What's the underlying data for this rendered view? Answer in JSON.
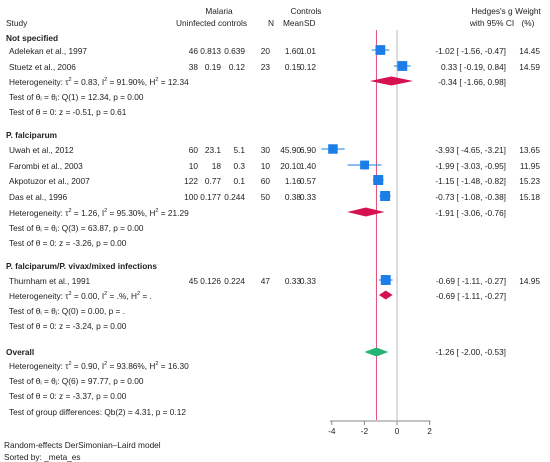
{
  "header": {
    "study": "Study",
    "group_malaria": "Malaria",
    "group_controls": "Controls",
    "uninfected_controls": "Uninfected controls",
    "n": "N",
    "mean": "Mean",
    "sd": "SD",
    "effect_line1": "Hedges's g",
    "effect_line2": "with 95% CI",
    "weight_line1": "Weight",
    "weight_line2": "(%)"
  },
  "groups": [
    {
      "title": "Not specified",
      "studies": [
        {
          "name": "Adelekan et al., 1997",
          "malaria_n": "46",
          "malaria_mean": "0.813",
          "malaria_sd": "0.639",
          "control_n": "20",
          "control_mean": "1.60",
          "control_sd": "1.01",
          "ci_text": "-1.02 [ -1.56, -0.47]",
          "weight": "14.45"
        },
        {
          "name": "Stuetz et al., 2006",
          "malaria_n": "38",
          "malaria_mean": "0.19",
          "malaria_sd": "0.12",
          "control_n": "23",
          "control_mean": "0.15",
          "control_sd": "0.12",
          "ci_text": "0.33 [ -0.19, 0.84]",
          "weight": "14.59"
        }
      ],
      "heterogeneity_prefix": "Heterogeneity: τ",
      "heterogeneity_sup1": "2",
      "heterogeneity_mid1": " = 0.83, I",
      "heterogeneity_sup2": "2",
      "heterogeneity_mid2": " = 91.90%, H",
      "heterogeneity_sup3": "2",
      "heterogeneity_end": " = 12.34",
      "pooled_ci_text": "-0.34 [ -1.66, 0.98]",
      "test_theta_i": "Test of θᵢ = θⱼ: Q(1) = 12.34, p = 0.00",
      "test_theta_zero": "Test of θ = 0: z = -0.51, p = 0.61"
    },
    {
      "title": "P. falciparum",
      "studies": [
        {
          "name": "Uwah et al., 2012",
          "malaria_n": "60",
          "malaria_mean": "23.1",
          "malaria_sd": "5.1",
          "control_n": "30",
          "control_mean": "45.90",
          "control_sd": "6.90",
          "ci_text": "-3.93 [ -4.65, -3.21]",
          "weight": "13.65"
        },
        {
          "name": "Farombi et al., 2003",
          "malaria_n": "10",
          "malaria_mean": "18",
          "malaria_sd": "0.3",
          "control_n": "10",
          "control_mean": "20.10",
          "control_sd": "1.40",
          "ci_text": "-1.99 [ -3.03, -0.95]",
          "weight": "11.95"
        },
        {
          "name": "Akpotuzor et al., 2007",
          "malaria_n": "122",
          "malaria_mean": "0.77",
          "malaria_sd": "0.1",
          "control_n": "60",
          "control_mean": "1.16",
          "control_sd": "0.57",
          "ci_text": "-1.15 [ -1.48, -0.82]",
          "weight": "15.23"
        },
        {
          "name": "Das et al., 1996",
          "malaria_n": "100",
          "malaria_mean": "0.177",
          "malaria_sd": "0.244",
          "control_n": "50",
          "control_mean": "0.38",
          "control_sd": "0.33",
          "ci_text": "-0.73 [ -1.08, -0.38]",
          "weight": "15.18"
        }
      ],
      "heterogeneity_prefix": "Heterogeneity: τ",
      "heterogeneity_sup1": "2",
      "heterogeneity_mid1": " = 1.26, I",
      "heterogeneity_sup2": "2",
      "heterogeneity_mid2": " = 95.30%, H",
      "heterogeneity_sup3": "2",
      "heterogeneity_end": " = 21.29",
      "pooled_ci_text": "-1.91 [ -3.06, -0.76]",
      "test_theta_i": "Test of θᵢ = θⱼ: Q(3) = 63.87, p = 0.00",
      "test_theta_zero": "Test of θ = 0: z = -3.26, p = 0.00"
    },
    {
      "title": "P. falciparum/P. vivax/mixed infections",
      "studies": [
        {
          "name": "Thurnham et al., 1991",
          "malaria_n": "45",
          "malaria_mean": "0.126",
          "malaria_sd": "0.224",
          "control_n": "47",
          "control_mean": "0.33",
          "control_sd": "0.33",
          "ci_text": "-0.69 [ -1.11, -0.27]",
          "weight": "14.95"
        }
      ],
      "heterogeneity_prefix": "Heterogeneity: τ",
      "heterogeneity_sup1": "2",
      "heterogeneity_mid1": " = 0.00, I",
      "heterogeneity_sup2": "2",
      "heterogeneity_mid2": " = .%, H",
      "heterogeneity_sup3": "2",
      "heterogeneity_end": " = .",
      "pooled_ci_text": "-0.69 [ -1.11, -0.27]",
      "test_theta_i": "Test of θᵢ = θⱼ: Q(0) = 0.00, p = .",
      "test_theta_zero": "Test of θ = 0: z = -3.24, p = 0.00"
    }
  ],
  "overall": {
    "title": "Overall",
    "heterogeneity_prefix": "Heterogeneity: τ",
    "heterogeneity_sup1": "2",
    "heterogeneity_mid1": " = 0.90, I",
    "heterogeneity_sup2": "2",
    "heterogeneity_mid2": " = 93.86%, H",
    "heterogeneity_sup3": "2",
    "heterogeneity_end": " = 16.30",
    "pooled_ci_text": "-1.26 [ -2.00, -0.53]",
    "test_theta_i": "Test of θᵢ = θⱼ: Q(6) = 97.77, p = 0.00",
    "test_theta_zero": "Test of θ = 0: z = -3.37, p = 0.00",
    "test_groups": "Test of group differences: Qb(2) = 4.31, p = 0.12"
  },
  "footer": {
    "model": "Random-effects DerSimonian–Laird model",
    "sorted": "Sorted by: _meta_es"
  },
  "colors": {
    "square": "#1a7ee6",
    "subgroup_diamond": "#d6114f",
    "overall_diamond": "#22b573",
    "overall_line": "#e0507a",
    "null_line": "#bbbbbb"
  },
  "chart_data": {
    "type": "forest",
    "xlim": [
      -5,
      2
    ],
    "xticks": [
      "-4",
      "-2",
      "0",
      "2"
    ],
    "tick_values": [
      -4,
      -2,
      0,
      2
    ],
    "null_value": 0,
    "overall_value": -1.26,
    "studies": [
      {
        "es": -1.02,
        "lo": -1.56,
        "hi": -0.47,
        "weight": 14.45
      },
      {
        "es": 0.33,
        "lo": -0.19,
        "hi": 0.84,
        "weight": 14.59
      },
      {
        "es": -3.93,
        "lo": -4.65,
        "hi": -3.21,
        "weight": 13.65
      },
      {
        "es": -1.99,
        "lo": -3.03,
        "hi": -0.95,
        "weight": 11.95
      },
      {
        "es": -1.15,
        "lo": -1.48,
        "hi": -0.82,
        "weight": 15.23
      },
      {
        "es": -0.73,
        "lo": -1.08,
        "hi": -0.38,
        "weight": 15.18
      },
      {
        "es": -0.69,
        "lo": -1.11,
        "hi": -0.27,
        "weight": 14.95
      }
    ],
    "subgroups": [
      {
        "es": -0.34,
        "lo": -1.66,
        "hi": 0.98
      },
      {
        "es": -1.91,
        "lo": -3.06,
        "hi": -0.76
      },
      {
        "es": -0.69,
        "lo": -1.11,
        "hi": -0.27
      }
    ],
    "overall": {
      "es": -1.26,
      "lo": -2.0,
      "hi": -0.53
    }
  }
}
